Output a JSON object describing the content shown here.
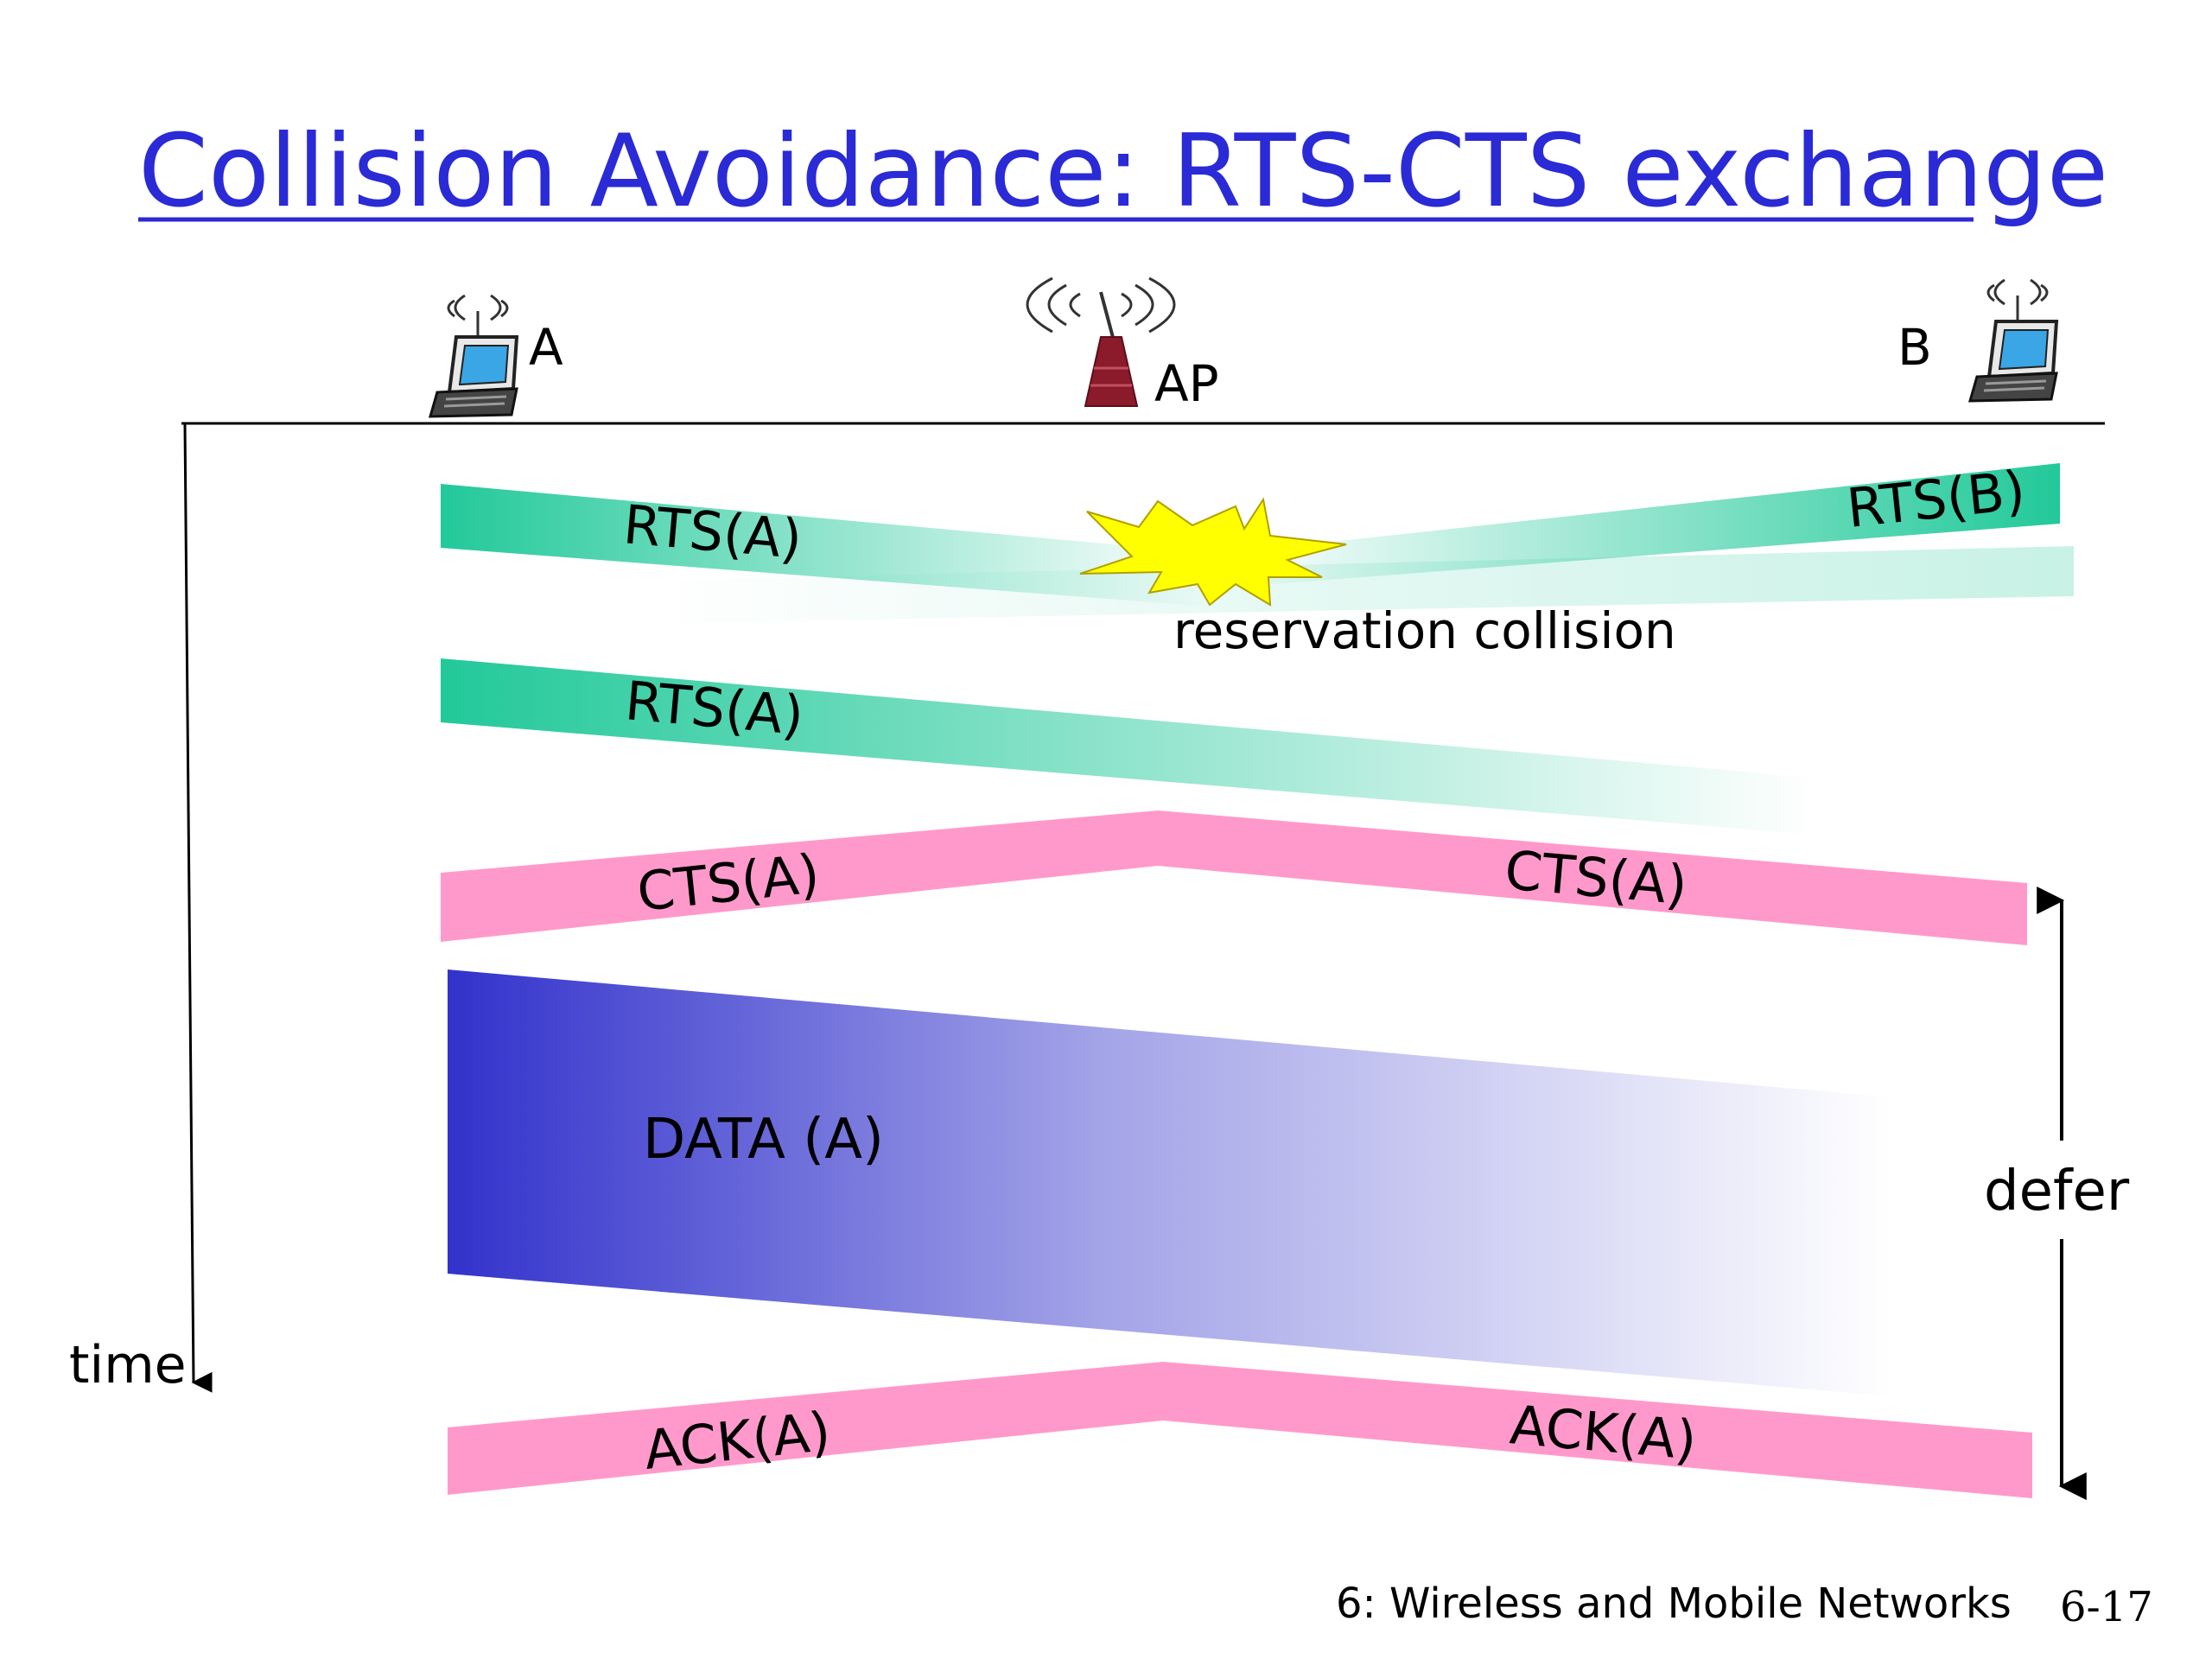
{
  "slide": {
    "title": "Collision Avoidance: RTS-CTS exchange",
    "footer_chapter": "6: Wireless and Mobile Networks",
    "footer_page": "6-17"
  },
  "nodes": {
    "a_label": "A",
    "ap_label": "AP",
    "b_label": "B"
  },
  "axis": {
    "time_label": "time",
    "defer_label": "defer"
  },
  "messages": {
    "rts_a_first": "RTS(A)",
    "rts_b": "RTS(B)",
    "collision_label": "reservation collision",
    "rts_a_second": "RTS(A)",
    "cts_a_left": "CTS(A)",
    "cts_a_right": "CTS(A)",
    "data_a": "DATA (A)",
    "ack_a_left": "ACK(A)",
    "ack_a_right": "ACK(A)"
  },
  "colors": {
    "title": "#2a2ad6",
    "rts": "#22c99a",
    "cts_ack": "#ff99cc",
    "data": "#3232cc",
    "burst": "#ffff00",
    "tower": "#8b1a2b"
  },
  "icons": [
    "laptop-icon",
    "antenna-tower-icon",
    "radio-waves-icon",
    "collision-burst-icon"
  ]
}
